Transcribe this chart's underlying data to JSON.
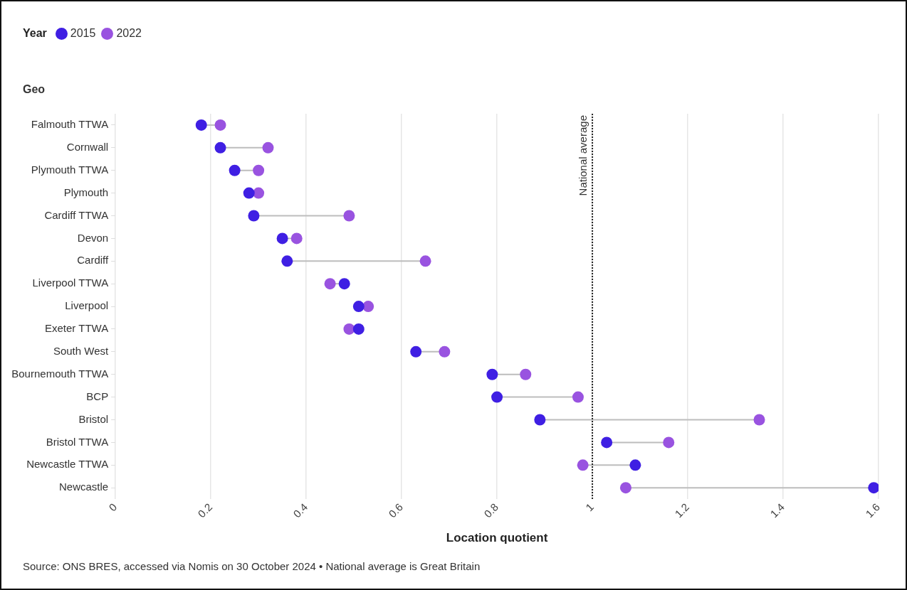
{
  "chart_data": {
    "type": "scatter",
    "orientation": "horizontal",
    "legend_title": "Year",
    "legend": "top left",
    "ylabel": "Geo",
    "xlabel": "Location quotient",
    "categories": [
      "Falmouth TTWA",
      "Cornwall",
      "Plymouth TTWA",
      "Plymouth",
      "Cardiff TTWA",
      "Devon",
      "Cardiff",
      "Liverpool TTWA",
      "Liverpool",
      "Exeter TTWA",
      "South West",
      "Bournemouth TTWA",
      "BCP",
      "Bristol",
      "Bristol TTWA",
      "Newcastle TTWA",
      "Newcastle"
    ],
    "series": [
      {
        "name": "2015",
        "color": "#3f1fe3",
        "values": [
          0.18,
          0.22,
          0.25,
          0.28,
          0.29,
          0.35,
          0.36,
          0.48,
          0.51,
          0.51,
          0.63,
          0.79,
          0.8,
          0.89,
          1.03,
          1.09,
          1.59
        ]
      },
      {
        "name": "2022",
        "color": "#9953e0",
        "values": [
          0.22,
          0.32,
          0.3,
          0.3,
          0.49,
          0.38,
          0.65,
          0.45,
          0.53,
          0.49,
          0.69,
          0.86,
          0.97,
          1.35,
          1.16,
          0.98,
          1.07
        ]
      }
    ],
    "xlim": [
      0,
      1.6
    ],
    "xticks": [
      0,
      0.2,
      0.4,
      0.6,
      0.8,
      1,
      1.2,
      1.4,
      1.6
    ],
    "grid": "x",
    "marker": "circle",
    "ref_lines": [
      {
        "axis": "x",
        "value": 1,
        "label": "National average",
        "line_style": "dotted",
        "color": "#222222"
      }
    ],
    "annotations": [
      "Source: ONS BRES, accessed via Nomis on 30 October 2024 • National average is Great Britain"
    ]
  }
}
